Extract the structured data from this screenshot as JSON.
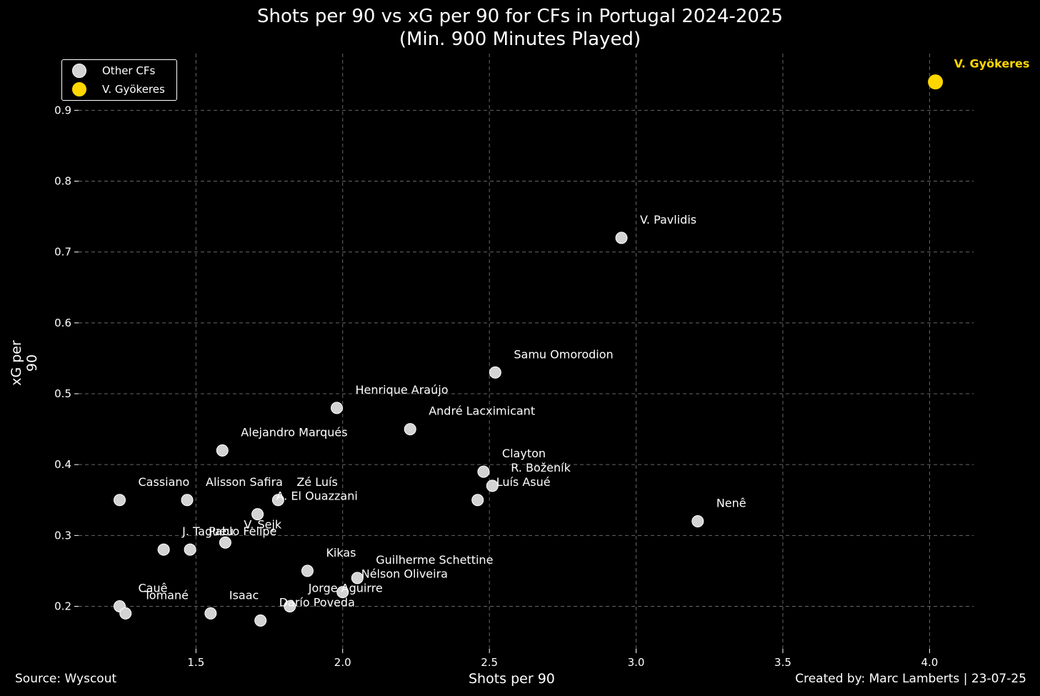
{
  "header": {
    "title_line1": "Shots per 90 vs xG per 90 for CFs in Portugal 2024-2025",
    "title_line2": "(Min. 900 Minutes Played)"
  },
  "footer": {
    "source": "Source: Wyscout",
    "credit": "Created by: Marc Lamberts | 23-07-25"
  },
  "legend": {
    "items": [
      {
        "label": "Other CFs",
        "color": "#d3d3d3"
      },
      {
        "label": "V. Gyökeres",
        "color": "#ffd700"
      }
    ],
    "placement": "top-left"
  },
  "chart_data": {
    "type": "scatter",
    "title": "Shots per 90 vs xG per 90 for CFs in Portugal 2024-2025\n(Min. 900 Minutes Played)",
    "xlabel": "Shots per 90",
    "ylabel": "xG per 90",
    "xlim": [
      1.1,
      4.15
    ],
    "ylim": [
      0.14,
      0.98
    ],
    "xticks": [
      1.5,
      2.0,
      2.5,
      3.0,
      3.5,
      4.0
    ],
    "xtick_labels": [
      "1.5",
      "2.0",
      "2.5",
      "3.0",
      "3.5",
      "4.0"
    ],
    "yticks": [
      0.2,
      0.3,
      0.4,
      0.5,
      0.6,
      0.7,
      0.8,
      0.9
    ],
    "ytick_labels": [
      "0.2",
      "0.3",
      "0.4",
      "0.5",
      "0.6",
      "0.7",
      "0.8",
      "0.9"
    ],
    "grid": true,
    "colors": {
      "others": "#d3d3d3",
      "highlight": "#ffd700",
      "grid": "#666666"
    },
    "series": [
      {
        "name": "Other CFs",
        "points": [
          {
            "label": "V. Pavlidis",
            "x": 2.95,
            "y": 0.72
          },
          {
            "label": "Samu Omorodion",
            "x": 2.52,
            "y": 0.53
          },
          {
            "label": "Henrique Araújo",
            "x": 1.98,
            "y": 0.48
          },
          {
            "label": "André Lacximicant",
            "x": 2.23,
            "y": 0.45
          },
          {
            "label": "Alejandro Marqués",
            "x": 1.59,
            "y": 0.42
          },
          {
            "label": "Clayton",
            "x": 2.48,
            "y": 0.39
          },
          {
            "label": "R. Boženík",
            "x": 2.51,
            "y": 0.37
          },
          {
            "label": "Luís Asué",
            "x": 2.46,
            "y": 0.35
          },
          {
            "label": "Cassiano",
            "x": 1.24,
            "y": 0.35
          },
          {
            "label": "Alisson Safira",
            "x": 1.47,
            "y": 0.35
          },
          {
            "label": "Zé Luís",
            "x": 1.78,
            "y": 0.35
          },
          {
            "label": "A. El Ouazzani",
            "x": 1.71,
            "y": 0.33
          },
          {
            "label": "Nenê",
            "x": 3.21,
            "y": 0.32
          },
          {
            "label": "V. Sejk",
            "x": 1.6,
            "y": 0.29
          },
          {
            "label": "J. Tagueu",
            "x": 1.39,
            "y": 0.28
          },
          {
            "label": "Pablo Felipe",
            "x": 1.48,
            "y": 0.28
          },
          {
            "label": "Kikas",
            "x": 1.88,
            "y": 0.25
          },
          {
            "label": "Guilherme Schettine",
            "x": 2.05,
            "y": 0.24
          },
          {
            "label": "Nélson Oliveira",
            "x": 2.0,
            "y": 0.22
          },
          {
            "label": "Jorge Aguirre",
            "x": 1.82,
            "y": 0.2
          },
          {
            "label": "Darío Poveda",
            "x": 1.72,
            "y": 0.18
          },
          {
            "label": "Cauê",
            "x": 1.24,
            "y": 0.2
          },
          {
            "label": "Tomané",
            "x": 1.26,
            "y": 0.19
          },
          {
            "label": "Isaac",
            "x": 1.55,
            "y": 0.19
          }
        ]
      },
      {
        "name": "V. Gyökeres",
        "points": [
          {
            "label": "V. Gyökeres",
            "x": 4.02,
            "y": 0.94
          }
        ]
      }
    ]
  }
}
